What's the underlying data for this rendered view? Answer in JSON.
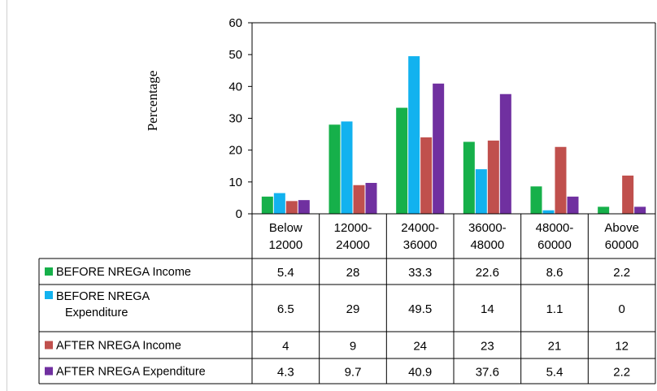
{
  "chart_data": {
    "type": "bar",
    "ylabel": "Percentage",
    "ylim": [
      0,
      60
    ],
    "yticks": [
      0,
      10,
      20,
      30,
      40,
      50,
      60
    ],
    "categories": [
      [
        "Below",
        "12000"
      ],
      [
        "12000-",
        "24000"
      ],
      [
        "24000-",
        "36000"
      ],
      [
        "36000-",
        "48000"
      ],
      [
        "48000-",
        "60000"
      ],
      [
        "Above",
        "60000"
      ]
    ],
    "series": [
      {
        "name": [
          "BEFORE NREGA Income"
        ],
        "color": "#16b04a",
        "values": [
          5.4,
          28,
          33.3,
          22.6,
          8.6,
          2.2
        ],
        "labels": [
          "5.4",
          "28",
          "33.3",
          "22.6",
          "8.6",
          "2.2"
        ]
      },
      {
        "name": [
          "BEFORE NREGA",
          "Expenditure"
        ],
        "color": "#12b2ef",
        "values": [
          6.5,
          29,
          49.5,
          14,
          1.1,
          0
        ],
        "labels": [
          "6.5",
          "29",
          "49.5",
          "14",
          "1.1",
          "0"
        ]
      },
      {
        "name": [
          "AFTER NREGA Income"
        ],
        "color": "#c0504d",
        "values": [
          4,
          9,
          24,
          23,
          21,
          12
        ],
        "labels": [
          "4",
          "9",
          "24",
          "23",
          "21",
          "12"
        ]
      },
      {
        "name": [
          "AFTER NREGA Expenditure"
        ],
        "color": "#7030a0",
        "values": [
          4.3,
          9.7,
          40.9,
          37.6,
          5.4,
          2.2
        ],
        "labels": [
          "4.3",
          "9.7",
          "40.9",
          "37.6",
          "5.4",
          "2.2"
        ]
      }
    ],
    "grid": false,
    "legend_placement": "table-left"
  }
}
